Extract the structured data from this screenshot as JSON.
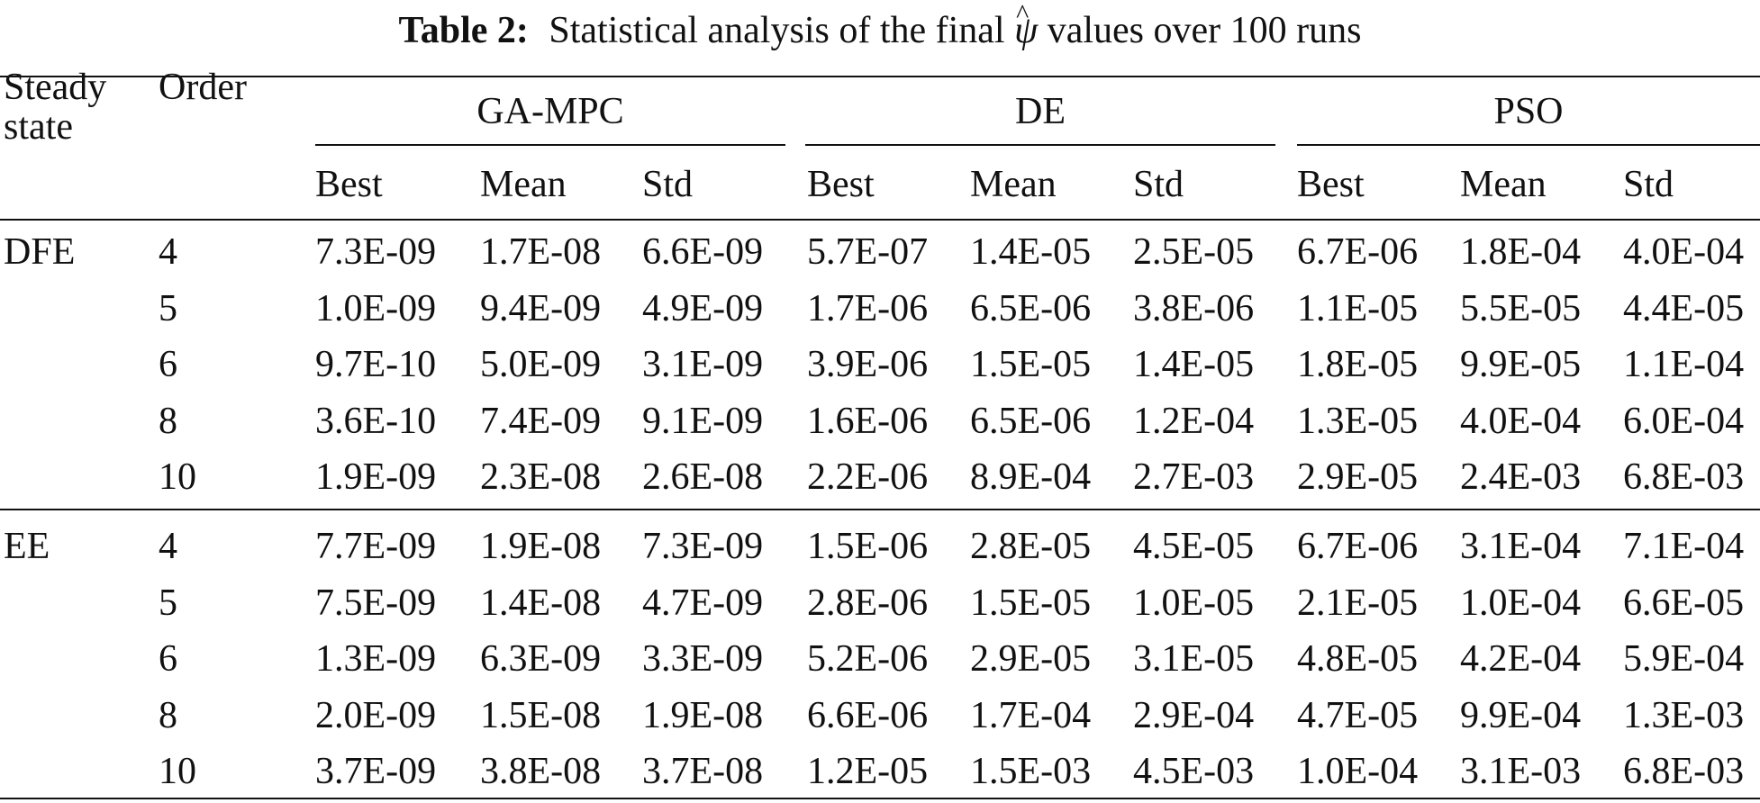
{
  "caption": {
    "label": "Table 2:",
    "text_before": "Statistical analysis of the final",
    "symbol": "ψ",
    "hat": "^",
    "text_after": "values over 100 runs"
  },
  "header": {
    "col1_line1": "Steady",
    "col1_line2": "state",
    "col2": "Order",
    "groups": [
      "GA-MPC",
      "DE",
      "PSO"
    ],
    "subheaders": [
      "Best",
      "Mean",
      "Std",
      "Best",
      "Mean",
      "Std",
      "Best",
      "Mean",
      "Std"
    ]
  },
  "sections": [
    {
      "state": "DFE",
      "rows": [
        {
          "order": "4",
          "values": [
            "7.3E-09",
            "1.7E-08",
            "6.6E-09",
            "5.7E-07",
            "1.4E-05",
            "2.5E-05",
            "6.7E-06",
            "1.8E-04",
            "4.0E-04"
          ]
        },
        {
          "order": "5",
          "values": [
            "1.0E-09",
            "9.4E-09",
            "4.9E-09",
            "1.7E-06",
            "6.5E-06",
            "3.8E-06",
            "1.1E-05",
            "5.5E-05",
            "4.4E-05"
          ]
        },
        {
          "order": "6",
          "values": [
            "9.7E-10",
            "5.0E-09",
            "3.1E-09",
            "3.9E-06",
            "1.5E-05",
            "1.4E-05",
            "1.8E-05",
            "9.9E-05",
            "1.1E-04"
          ]
        },
        {
          "order": "8",
          "values": [
            "3.6E-10",
            "7.4E-09",
            "9.1E-09",
            "1.6E-06",
            "6.5E-06",
            "1.2E-04",
            "1.3E-05",
            "4.0E-04",
            "6.0E-04"
          ]
        },
        {
          "order": "10",
          "values": [
            "1.9E-09",
            "2.3E-08",
            "2.6E-08",
            "2.2E-06",
            "8.9E-04",
            "2.7E-03",
            "2.9E-05",
            "2.4E-03",
            "6.8E-03"
          ]
        }
      ]
    },
    {
      "state": "EE",
      "rows": [
        {
          "order": "4",
          "values": [
            "7.7E-09",
            "1.9E-08",
            "7.3E-09",
            "1.5E-06",
            "2.8E-05",
            "4.5E-05",
            "6.7E-06",
            "3.1E-04",
            "7.1E-04"
          ]
        },
        {
          "order": "5",
          "values": [
            "7.5E-09",
            "1.4E-08",
            "4.7E-09",
            "2.8E-06",
            "1.5E-05",
            "1.0E-05",
            "2.1E-05",
            "1.0E-04",
            "6.6E-05"
          ]
        },
        {
          "order": "6",
          "values": [
            "1.3E-09",
            "6.3E-09",
            "3.3E-09",
            "5.2E-06",
            "2.9E-05",
            "3.1E-05",
            "4.8E-05",
            "4.2E-04",
            "5.9E-04"
          ]
        },
        {
          "order": "8",
          "values": [
            "2.0E-09",
            "1.5E-08",
            "1.9E-08",
            "6.6E-06",
            "1.7E-04",
            "2.9E-04",
            "4.7E-05",
            "9.9E-04",
            "1.3E-03"
          ]
        },
        {
          "order": "10",
          "values": [
            "3.7E-09",
            "3.8E-08",
            "3.7E-08",
            "1.2E-05",
            "1.5E-03",
            "4.5E-03",
            "1.0E-04",
            "3.1E-03",
            "6.8E-03"
          ]
        }
      ]
    }
  ]
}
